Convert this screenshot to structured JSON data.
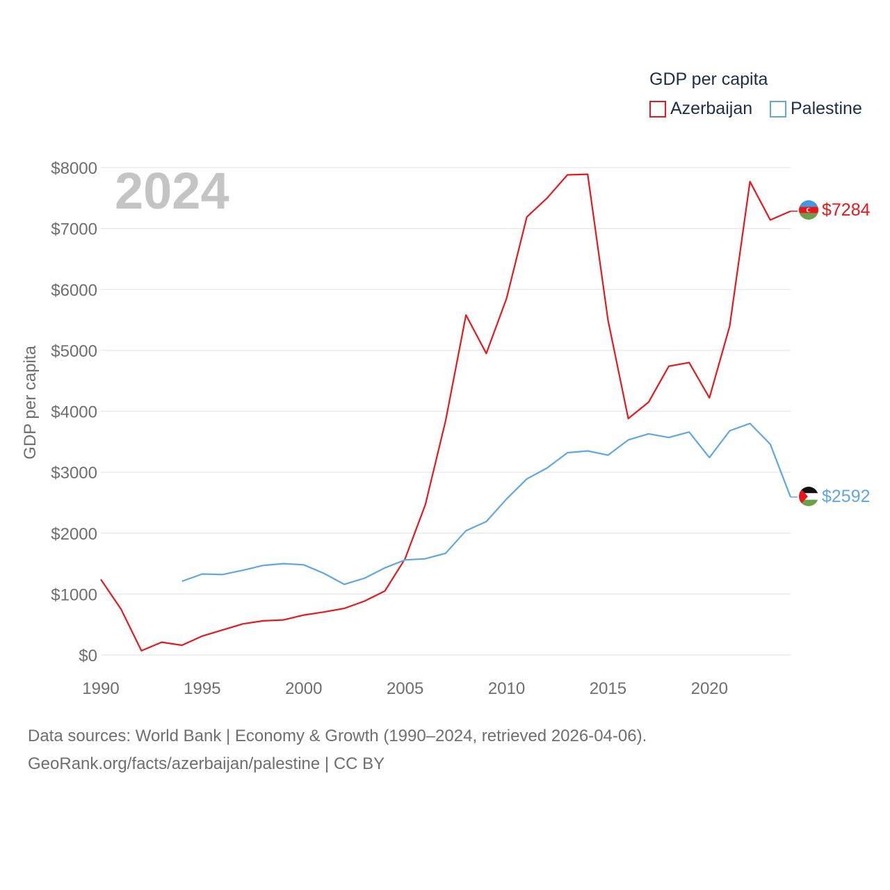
{
  "chart_data": {
    "type": "line",
    "watermark_year": "2024",
    "ylabel": "GDP per capita",
    "xlabel": "",
    "xlim": [
      1990,
      2024
    ],
    "ylim": [
      0,
      8000
    ],
    "x_ticks": [
      1990,
      1995,
      2000,
      2005,
      2010,
      2015,
      2020
    ],
    "x_tick_labels": [
      "1990",
      "1995",
      "2000",
      "2005",
      "2010",
      "2015",
      "2020"
    ],
    "y_ticks": [
      0,
      1000,
      2000,
      3000,
      4000,
      5000,
      6000,
      7000,
      8000
    ],
    "y_tick_labels": [
      "$0",
      "$1000",
      "$2000",
      "$3000",
      "$4000",
      "$5000",
      "$6000",
      "$7000",
      "$8000"
    ],
    "legend": {
      "title": "GDP per capita",
      "position": "top-right"
    },
    "series": [
      {
        "name": "Azerbaijan",
        "color": "#e8171b",
        "end_label": "$7284",
        "flag_icon": "azerbaijan-flag-icon",
        "x": [
          1990,
          1991,
          1992,
          1993,
          1994,
          1995,
          1996,
          1997,
          1998,
          1999,
          2000,
          2001,
          2002,
          2003,
          2004,
          2005,
          2006,
          2007,
          2008,
          2009,
          2010,
          2011,
          2012,
          2013,
          2014,
          2015,
          2016,
          2017,
          2018,
          2019,
          2020,
          2021,
          2022,
          2023,
          2024
        ],
        "values": [
          1240,
          750,
          70,
          210,
          160,
          310,
          410,
          510,
          560,
          575,
          655,
          705,
          765,
          885,
          1050,
          1580,
          2470,
          3850,
          5580,
          4950,
          5850,
          7190,
          7500,
          7880,
          7890,
          5500,
          3880,
          4150,
          4740,
          4800,
          4220,
          5400,
          7770,
          7140,
          7284
        ]
      },
      {
        "name": "Palestine",
        "color": "#5fa6e6",
        "end_label": "$2592",
        "flag_icon": "palestine-flag-icon",
        "x": [
          1994,
          1995,
          1996,
          1997,
          1998,
          1999,
          2000,
          2001,
          2002,
          2003,
          2004,
          2005,
          2006,
          2007,
          2008,
          2009,
          2010,
          2011,
          2012,
          2013,
          2014,
          2015,
          2016,
          2017,
          2018,
          2019,
          2020,
          2021,
          2022,
          2023,
          2024
        ],
        "values": [
          1210,
          1330,
          1320,
          1390,
          1470,
          1500,
          1480,
          1340,
          1160,
          1260,
          1430,
          1560,
          1580,
          1670,
          2040,
          2190,
          2560,
          2890,
          3070,
          3320,
          3350,
          3280,
          3530,
          3630,
          3570,
          3660,
          3240,
          3680,
          3800,
          3460,
          2592
        ]
      }
    ]
  },
  "footer": {
    "line1": "Data sources: World Bank | Economy & Growth (1990–2024, retrieved 2026-04-06).",
    "line2": "GeoRank.org/facts/azerbaijan/palestine | CC BY"
  }
}
